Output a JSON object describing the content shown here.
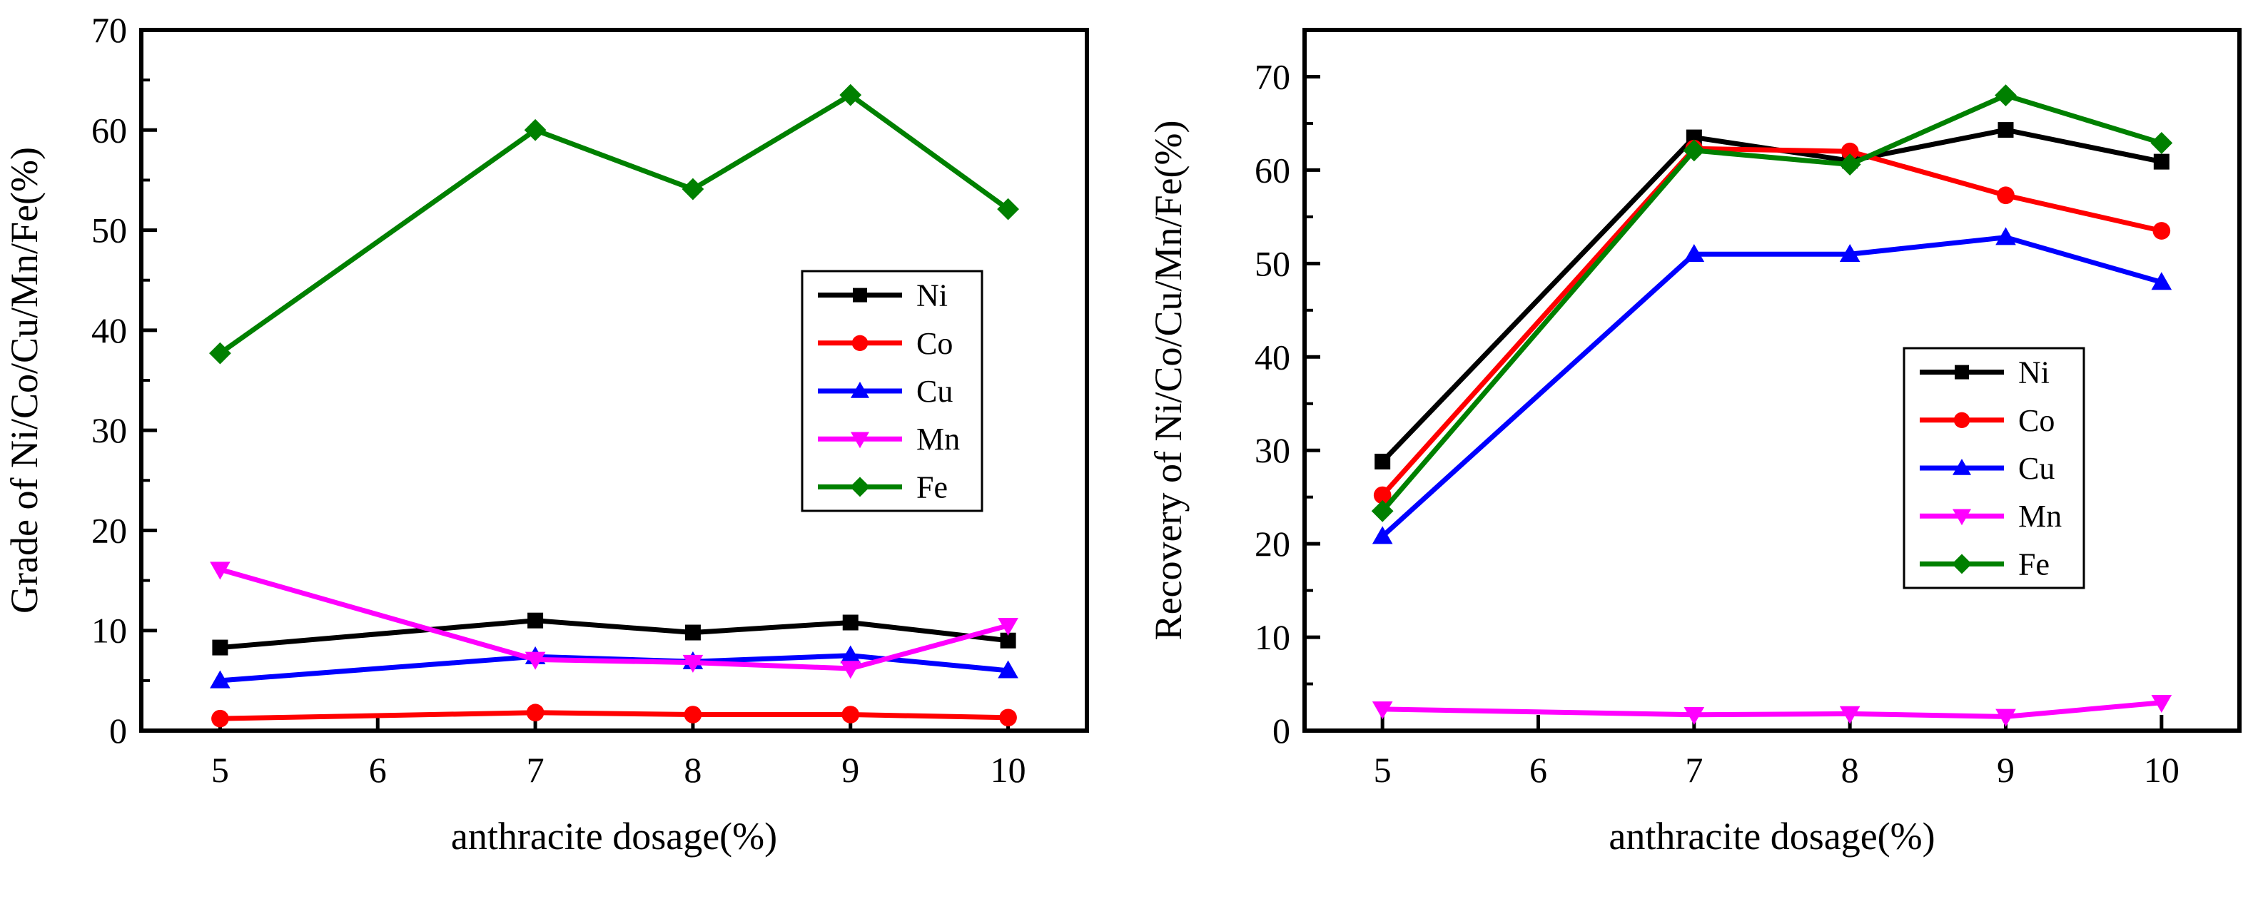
{
  "chart_data": [
    {
      "type": "line",
      "title": "",
      "xlabel": "anthracite dosage(%)",
      "ylabel": "Grade of Ni/Co/Cu/Mn/Fe(%)",
      "xlim": [
        4.5,
        10.5
      ],
      "ylim": [
        0,
        70
      ],
      "xticks": [
        5,
        6,
        7,
        8,
        9,
        10
      ],
      "yticks": [
        0,
        10,
        20,
        30,
        40,
        50,
        60,
        70
      ],
      "grid": false,
      "legend_position": "right-middle",
      "x": [
        5,
        7,
        8,
        9,
        10
      ],
      "series": [
        {
          "name": "Ni",
          "color": "#000000",
          "marker": "square",
          "values": [
            8.3,
            11.0,
            9.8,
            10.8,
            9.0
          ]
        },
        {
          "name": "Co",
          "color": "#ff0000",
          "marker": "circle",
          "values": [
            1.2,
            1.8,
            1.6,
            1.6,
            1.3
          ]
        },
        {
          "name": "Cu",
          "color": "#0000ff",
          "marker": "triangle-up",
          "values": [
            5.0,
            7.4,
            6.9,
            7.5,
            6.0
          ]
        },
        {
          "name": "Mn",
          "color": "#ff00ff",
          "marker": "triangle-down",
          "values": [
            16.1,
            7.1,
            6.8,
            6.2,
            10.5
          ]
        },
        {
          "name": "Fe",
          "color": "#008000",
          "marker": "diamond",
          "values": [
            37.7,
            60.0,
            54.1,
            63.5,
            52.1
          ]
        }
      ]
    },
    {
      "type": "line",
      "title": "",
      "xlabel": "anthracite dosage(%)",
      "ylabel": "Recovery of Ni/Co/Cu/Mn/Fe(%)",
      "xlim": [
        4.5,
        10.5
      ],
      "ylim": [
        0,
        75
      ],
      "xticks": [
        5,
        6,
        7,
        8,
        9,
        10
      ],
      "yticks": [
        0,
        10,
        20,
        30,
        40,
        50,
        60,
        70
      ],
      "grid": false,
      "legend_position": "right-middle",
      "x": [
        5,
        7,
        8,
        9,
        10
      ],
      "series": [
        {
          "name": "Ni",
          "color": "#000000",
          "marker": "square",
          "values": [
            28.8,
            63.5,
            61.0,
            64.3,
            60.9
          ]
        },
        {
          "name": "Co",
          "color": "#ff0000",
          "marker": "circle",
          "values": [
            25.2,
            62.3,
            62.0,
            57.3,
            53.5
          ]
        },
        {
          "name": "Cu",
          "color": "#0000ff",
          "marker": "triangle-up",
          "values": [
            20.8,
            51.0,
            51.0,
            52.8,
            48.0
          ]
        },
        {
          "name": "Mn",
          "color": "#ff00ff",
          "marker": "triangle-down",
          "values": [
            2.3,
            1.7,
            1.8,
            1.5,
            3.0
          ]
        },
        {
          "name": "Fe",
          "color": "#008000",
          "marker": "diamond",
          "values": [
            23.5,
            62.1,
            60.6,
            68.0,
            62.9
          ]
        }
      ]
    }
  ]
}
